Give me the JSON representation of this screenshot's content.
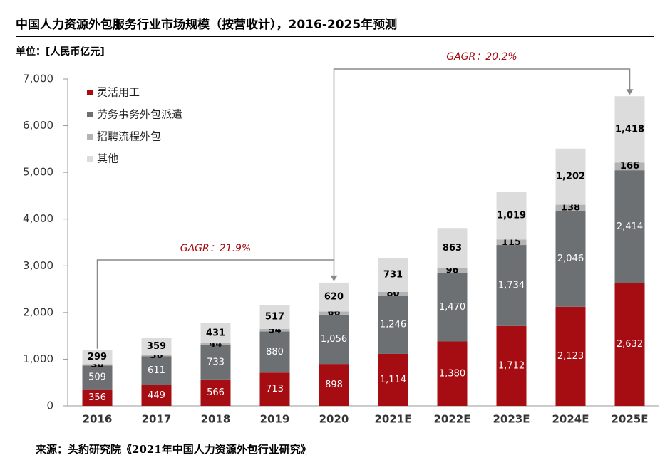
{
  "chart_data": {
    "type": "stacked-bar",
    "title": "中国人力资源外包服务行业市场规模（按营收计），2016-2025年预测",
    "unit_label": "单位：[人民币亿元]",
    "source": "来源：头豹研究院《2021年中国人力资源外包行业研究》",
    "annotations": [
      "GAGR：21.9%",
      "GAGR：20.2%"
    ],
    "categories": [
      "2016",
      "2017",
      "2018",
      "2019",
      "2020",
      "2021E",
      "2022E",
      "2023E",
      "2024E",
      "2025E"
    ],
    "series": [
      {
        "name": "灵活用工",
        "color": "#a50d12",
        "values": [
          356,
          449,
          566,
          713,
          898,
          1114,
          1380,
          1712,
          2123,
          2632
        ],
        "value_labels": [
          "356",
          "449",
          "566",
          "713",
          "898",
          "1,114",
          "1,380",
          "1,712",
          "2,123",
          "2,632"
        ]
      },
      {
        "name": "劳务事务外包派遣",
        "color": "#6d7072",
        "values": [
          509,
          611,
          733,
          880,
          1056,
          1246,
          1470,
          1734,
          2046,
          2414
        ],
        "value_labels": [
          "509",
          "611",
          "733",
          "880",
          "1,056",
          "1,246",
          "1,470",
          "1,734",
          "2,046",
          "2,414"
        ]
      },
      {
        "name": "招聘流程外包",
        "color": "#b3b3b3",
        "values": [
          30,
          36,
          44,
          54,
          66,
          80,
          96,
          115,
          138,
          166
        ],
        "value_labels": [
          "30",
          "36",
          "44",
          "54",
          "66",
          "80",
          "96",
          "115",
          "138",
          "166"
        ]
      },
      {
        "name": "其他",
        "color": "#dcdcdc",
        "values": [
          299,
          359,
          431,
          517,
          620,
          731,
          863,
          1019,
          1202,
          1418
        ],
        "value_labels": [
          "299",
          "359",
          "431",
          "517",
          "620",
          "731",
          "863",
          "1,019",
          "1,202",
          "1,418"
        ]
      }
    ],
    "ylim": [
      0,
      7000
    ],
    "yticks": [
      0,
      {
        "value": 1000,
        "label": "1,000"
      },
      {
        "value": 2000,
        "label": "2,000"
      },
      {
        "value": 3000,
        "label": "3,000"
      },
      {
        "value": 4000,
        "label": "4,000"
      },
      {
        "value": 5000,
        "label": "5,000"
      },
      {
        "value": 6000,
        "label": "6,000"
      },
      {
        "value": 7000,
        "label": "7,000"
      }
    ],
    "legend": "top-left"
  }
}
